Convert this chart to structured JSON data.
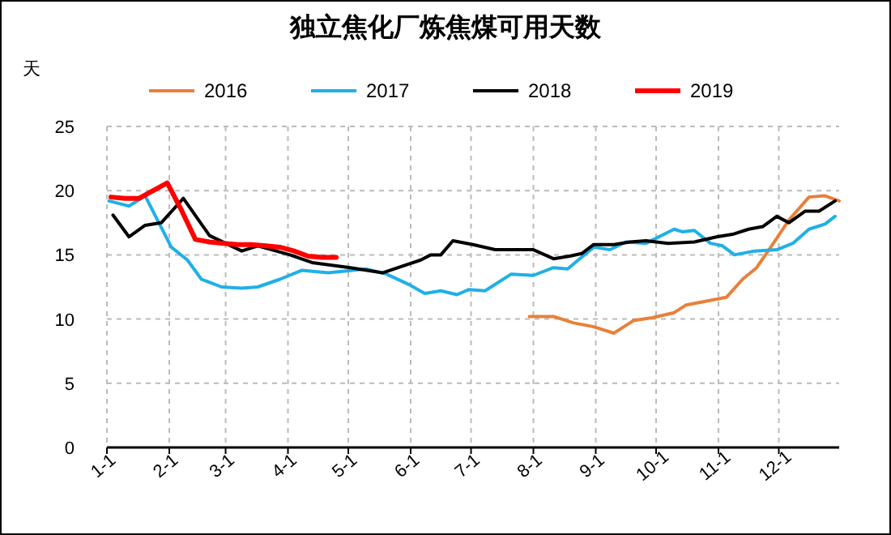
{
  "chart_data": {
    "type": "line",
    "title": "独立焦化厂炼焦煤可用天数",
    "ylabel": "天",
    "xlim": [
      "--01-01",
      "--12-31"
    ],
    "xticks": [
      {
        "value": "--01-01",
        "label": "1-1"
      },
      {
        "value": "--02-01",
        "label": "2-1"
      },
      {
        "value": "--03-01",
        "label": "3-1"
      },
      {
        "value": "--04-01",
        "label": "4-1"
      },
      {
        "value": "--05-01",
        "label": "5-1"
      },
      {
        "value": "--06-01",
        "label": "6-1"
      },
      {
        "value": "--07-01",
        "label": "7-1"
      },
      {
        "value": "--08-01",
        "label": "8-1"
      },
      {
        "value": "--09-01",
        "label": "9-1"
      },
      {
        "value": "--10-01",
        "label": "10-1"
      },
      {
        "value": "--11-01",
        "label": "11-1"
      },
      {
        "value": "--12-01",
        "label": "12-1"
      }
    ],
    "ylim": [
      0,
      25
    ],
    "yticks": [
      0,
      5,
      10,
      15,
      20,
      25
    ],
    "grid": true,
    "legend": "top",
    "marker": "none",
    "line_style": "solid",
    "series": [
      {
        "name": "2016",
        "color": "#e8803a",
        "x": [
          "--07-30",
          "--08-11",
          "--08-21",
          "--08-31",
          "--09-10",
          "--09-20",
          "--09-29",
          "--10-10",
          "--10-16",
          "--10-26",
          "--11-05",
          "--11-13",
          "--11-20",
          "--11-27",
          "--12-06",
          "--12-16",
          "--12-24",
          "--12-31"
        ],
        "values": [
          10.2,
          10.2,
          9.7,
          9.4,
          8.9,
          9.9,
          10.1,
          10.5,
          11.1,
          11.4,
          11.7,
          13.1,
          14.0,
          15.6,
          17.7,
          19.5,
          19.6,
          19.2
        ]
      },
      {
        "name": "2017",
        "color": "#1fb0e6",
        "x": [
          "--01-02",
          "--01-12",
          "--01-20",
          "--02-02",
          "--02-10",
          "--02-17",
          "--02-27",
          "--03-09",
          "--03-17",
          "--03-28",
          "--04-08",
          "--04-21",
          "--05-10",
          "--05-20",
          "--05-31",
          "--06-08",
          "--06-16",
          "--06-24",
          "--06-30",
          "--07-08",
          "--07-21",
          "--08-01",
          "--08-11",
          "--08-18",
          "--08-31",
          "--09-08",
          "--09-16",
          "--09-26",
          "--10-10",
          "--10-14",
          "--10-20",
          "--10-28",
          "--11-03",
          "--11-09",
          "--11-19",
          "--11-30",
          "--12-08",
          "--12-16",
          "--12-24",
          "--12-29"
        ],
        "values": [
          19.2,
          18.8,
          19.6,
          15.6,
          14.6,
          13.1,
          12.5,
          12.4,
          12.5,
          13.1,
          13.8,
          13.6,
          13.9,
          13.5,
          12.7,
          12.0,
          12.2,
          11.9,
          12.3,
          12.2,
          13.5,
          13.4,
          14.0,
          13.9,
          15.6,
          15.4,
          16.0,
          15.9,
          17.0,
          16.8,
          16.9,
          15.9,
          15.7,
          15.0,
          15.3,
          15.4,
          15.9,
          17.0,
          17.4,
          18.0
        ]
      },
      {
        "name": "2018",
        "color": "#000000",
        "x": [
          "--01-04",
          "--01-12",
          "--01-20",
          "--01-28",
          "--02-08",
          "--02-21",
          "--03-09",
          "--03-17",
          "--04-02",
          "--04-13",
          "--05-02",
          "--05-18",
          "--06-06",
          "--06-11",
          "--06-16",
          "--06-22",
          "--07-02",
          "--07-13",
          "--08-01",
          "--08-11",
          "--08-19",
          "--08-25",
          "--08-31",
          "--09-10",
          "--09-18",
          "--09-26",
          "--10-07",
          "--10-20",
          "--10-31",
          "--11-08",
          "--11-16",
          "--11-23",
          "--11-30",
          "--12-06",
          "--12-14",
          "--12-21",
          "--12-29"
        ],
        "values": [
          18.1,
          16.4,
          17.3,
          17.5,
          19.4,
          16.5,
          15.3,
          15.7,
          15.0,
          14.4,
          14.0,
          13.6,
          14.6,
          15.0,
          15.0,
          16.1,
          15.8,
          15.4,
          15.4,
          14.7,
          14.9,
          15.1,
          15.8,
          15.8,
          16.0,
          16.1,
          15.9,
          16.0,
          16.4,
          16.6,
          17.0,
          17.2,
          18.0,
          17.5,
          18.4,
          18.4,
          19.2
        ]
      },
      {
        "name": "2019",
        "color": "#ff0000",
        "x": [
          "--01-03",
          "--01-10",
          "--01-17",
          "--01-24",
          "--01-31",
          "--02-07",
          "--02-14",
          "--02-21",
          "--02-28",
          "--03-07",
          "--03-14",
          "--03-21",
          "--03-28",
          "--04-04",
          "--04-11",
          "--04-18",
          "--04-25"
        ],
        "values": [
          19.5,
          19.4,
          19.4,
          20.0,
          20.6,
          18.5,
          16.2,
          16.0,
          15.9,
          15.8,
          15.8,
          15.7,
          15.6,
          15.3,
          14.9,
          14.8,
          14.8
        ]
      }
    ]
  }
}
